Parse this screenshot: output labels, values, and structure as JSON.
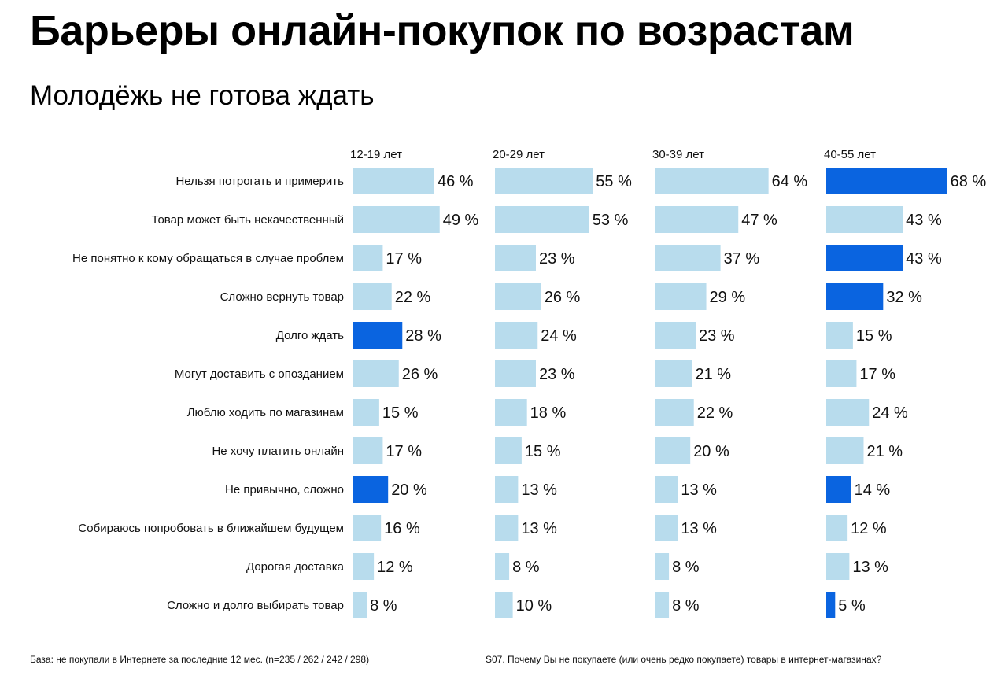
{
  "title": "Барьеры онлайн-покупок по возрастам",
  "subtitle": "Молодёжь не готова ждать",
  "footnote_left": "База: не покупали в Интернете за последние 12 мес. (n=235 / 262 / 242 / 298)",
  "footnote_right": "S07. Почему Вы не покупаете (или очень редко покупаете) товары в интернет-магазинах?",
  "colors": {
    "bar_default": "#b8dced",
    "bar_highlight": "#0a64e0",
    "text": "#111111"
  },
  "chart_data": {
    "type": "bar",
    "orientation": "horizontal",
    "value_suffix": " %",
    "categories": [
      "Нельзя потрогать и примерить",
      "Товар может быть некачественный",
      "Не понятно к кому обращаться в случае проблем",
      "Сложно вернуть товар",
      "Долго ждать",
      "Могут доставить с опозданием",
      "Люблю ходить по магазинам",
      "Не хочу платить онлайн",
      "Не привычно, сложно",
      "Собираюсь попробовать в ближайшем будущем",
      "Дорогая доставка",
      "Сложно и долго выбирать товар"
    ],
    "series": [
      {
        "name": "12-19 лет",
        "values": [
          46,
          49,
          17,
          22,
          28,
          26,
          15,
          17,
          20,
          16,
          12,
          8
        ],
        "highlight": [
          4,
          8
        ]
      },
      {
        "name": "20-29 лет",
        "values": [
          55,
          53,
          23,
          26,
          24,
          23,
          18,
          15,
          13,
          13,
          8,
          10
        ],
        "highlight": []
      },
      {
        "name": "30-39 лет",
        "values": [
          64,
          47,
          37,
          29,
          23,
          21,
          22,
          20,
          13,
          13,
          8,
          8
        ],
        "highlight": []
      },
      {
        "name": "40-55 лет",
        "values": [
          68,
          43,
          43,
          32,
          15,
          17,
          24,
          21,
          14,
          12,
          13,
          5
        ],
        "highlight": [
          0,
          2,
          3,
          8,
          11
        ]
      }
    ]
  }
}
